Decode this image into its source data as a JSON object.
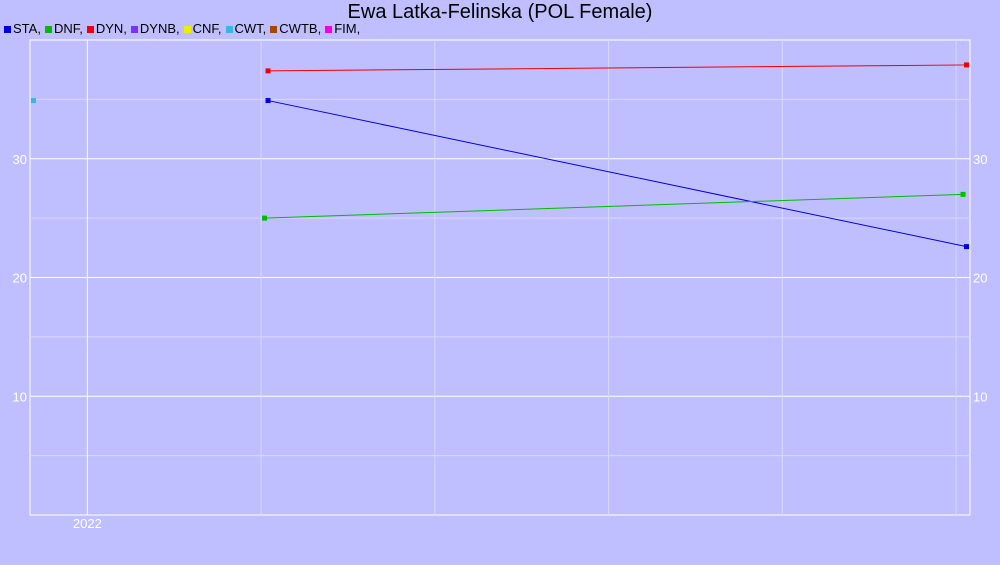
{
  "chart_data": {
    "type": "line",
    "title": "Ewa Latka-Felinska (POL Female)",
    "xlabel": "",
    "ylabel": "",
    "x_tick_labels": [
      {
        "x": 2022.0,
        "label": "2022"
      }
    ],
    "xlim": [
      2021.835,
      2024.54
    ],
    "ylim": [
      0,
      40
    ],
    "y_ticks": [
      10,
      20,
      30
    ],
    "grid": true,
    "legend_position": "top-left",
    "legend": [
      {
        "name": "STA",
        "color": "#0000dd"
      },
      {
        "name": "DNF",
        "color": "#00bb00"
      },
      {
        "name": "DYN",
        "color": "#ee0000"
      },
      {
        "name": "DYNB",
        "color": "#7f2fff"
      },
      {
        "name": "CNF",
        "color": "#eeee00"
      },
      {
        "name": "CWT",
        "color": "#33bbdd"
      },
      {
        "name": "CWTB",
        "color": "#aa4400"
      },
      {
        "name": "FIM",
        "color": "#ee00ee"
      }
    ],
    "series": [
      {
        "name": "STA",
        "color": "#0000dd",
        "points": [
          [
            2022.52,
            34.9
          ],
          [
            2024.53,
            22.6
          ]
        ]
      },
      {
        "name": "DNF",
        "color": "#00bb00",
        "points": [
          [
            2022.51,
            25.0
          ],
          [
            2024.52,
            27.0
          ]
        ]
      },
      {
        "name": "DYN",
        "color": "#ee0000",
        "points": [
          [
            2022.52,
            37.4
          ],
          [
            2024.53,
            37.9
          ]
        ]
      },
      {
        "name": "CWT",
        "color": "#33bbdd",
        "points": [
          [
            2021.845,
            34.9
          ]
        ]
      }
    ]
  }
}
